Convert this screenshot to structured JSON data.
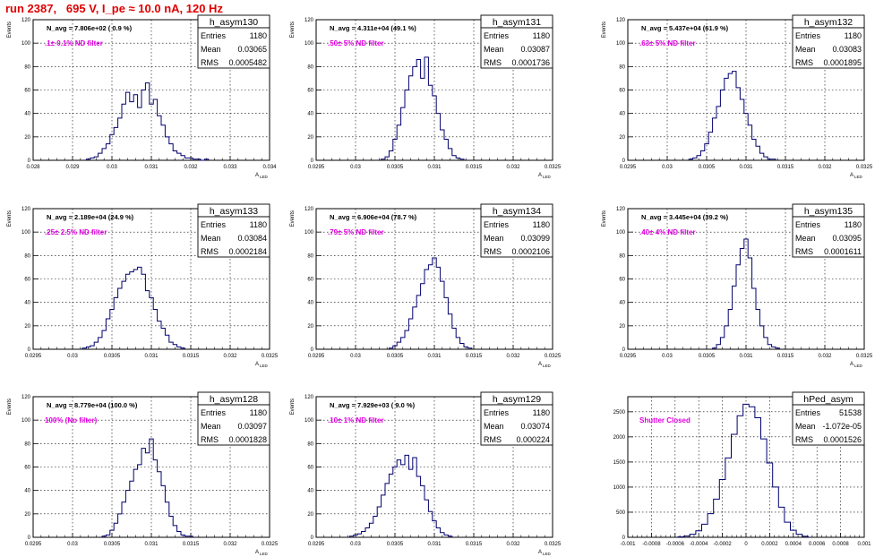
{
  "header": {
    "run_title": "run 2387,   695 V, I_pe ≈ 10.0 nA, 120 Hz"
  },
  "colors": {
    "line": "#00006e",
    "title": "#e00000",
    "annotation": "#e000e0",
    "grid": "#000000"
  },
  "chart_data": [
    {
      "type": "line",
      "title": "h_asym130",
      "nlabel": "N_avg = 7.806e+02 ( 0.9 %)",
      "annotation": ".1± 0.1% ND filter",
      "stats": [
        [
          "Entries",
          "1180"
        ],
        [
          "Mean",
          "0.03065"
        ],
        [
          "RMS",
          "0.0005482"
        ]
      ],
      "xlabel": "A_LED",
      "ylabel": "Events",
      "xlim": [
        0.028,
        0.034
      ],
      "ylim": [
        0,
        120
      ],
      "xticks": [
        0.028,
        0.029,
        0.03,
        0.031,
        0.032,
        0.033,
        0.034
      ],
      "xticklabels": [
        "0.028",
        "0.029",
        "0.03",
        "0.031",
        "0.032",
        "0.033",
        "0.034"
      ],
      "yticks": [
        0,
        20,
        40,
        60,
        80,
        100,
        120
      ],
      "x": [
        0.0294,
        0.0295,
        0.0296,
        0.0297,
        0.0298,
        0.0299,
        0.03,
        0.0301,
        0.0302,
        0.0303,
        0.0304,
        0.0305,
        0.0306,
        0.0307,
        0.0308,
        0.0309,
        0.031,
        0.0311,
        0.0312,
        0.0313,
        0.0314,
        0.0315,
        0.0316,
        0.0317,
        0.0318,
        0.0319,
        0.032,
        0.0321,
        0.0322,
        0.0323,
        0.0324
      ],
      "values": [
        1,
        2,
        3,
        6,
        10,
        14,
        22,
        28,
        36,
        48,
        58,
        50,
        56,
        45,
        60,
        66,
        48,
        52,
        38,
        30,
        20,
        14,
        8,
        6,
        4,
        2,
        2,
        1,
        1,
        0,
        1
      ]
    },
    {
      "type": "line",
      "title": "h_asym131",
      "nlabel": "N_avg = 4.311e+04 (49.1 %)",
      "annotation": ".50± 5% ND filter",
      "stats": [
        [
          "Entries",
          "1180"
        ],
        [
          "Mean",
          "0.03087"
        ],
        [
          "RMS",
          "0.0001736"
        ]
      ],
      "xlabel": "A_LED",
      "ylabel": "Events",
      "xlim": [
        0.0295,
        0.0325
      ],
      "ylim": [
        0,
        120
      ],
      "xticks": [
        0.0295,
        0.03,
        0.0305,
        0.031,
        0.0315,
        0.032,
        0.0325
      ],
      "xticklabels": [
        "0.0295",
        "0.03",
        "0.0305",
        "0.031",
        "0.0315",
        "0.032",
        "0.0325"
      ],
      "yticks": [
        0,
        20,
        40,
        60,
        80,
        100,
        120
      ],
      "x": [
        0.03035,
        0.0304,
        0.03045,
        0.0305,
        0.03055,
        0.0306,
        0.03065,
        0.0307,
        0.03075,
        0.0308,
        0.03085,
        0.0309,
        0.03095,
        0.031,
        0.03105,
        0.0311,
        0.03115,
        0.0312,
        0.03125,
        0.0313,
        0.03135
      ],
      "values": [
        1,
        3,
        8,
        18,
        30,
        45,
        60,
        72,
        80,
        86,
        70,
        88,
        64,
        55,
        40,
        26,
        18,
        10,
        4,
        2,
        1
      ]
    },
    {
      "type": "line",
      "title": "h_asym132",
      "nlabel": "N_avg = 5.437e+04 (61.9 %)",
      "annotation": ".63± 5% ND filter",
      "stats": [
        [
          "Entries",
          "1180"
        ],
        [
          "Mean",
          "0.03083"
        ],
        [
          "RMS",
          "0.0001895"
        ]
      ],
      "xlabel": "A_LED",
      "ylabel": "Events",
      "xlim": [
        0.0295,
        0.0325
      ],
      "ylim": [
        0,
        120
      ],
      "xticks": [
        0.0295,
        0.03,
        0.0305,
        0.031,
        0.0315,
        0.032,
        0.0325
      ],
      "xticklabels": [
        "0.0295",
        "0.03",
        "0.0305",
        "0.031",
        "0.0315",
        "0.032",
        "0.0325"
      ],
      "yticks": [
        0,
        20,
        40,
        60,
        80,
        100,
        120
      ],
      "x": [
        0.0303,
        0.03035,
        0.0304,
        0.03045,
        0.0305,
        0.03055,
        0.0306,
        0.03065,
        0.0307,
        0.03075,
        0.0308,
        0.03085,
        0.0309,
        0.03095,
        0.031,
        0.03105,
        0.0311,
        0.03115,
        0.0312,
        0.03125,
        0.0313,
        0.03135
      ],
      "values": [
        1,
        2,
        4,
        8,
        14,
        24,
        36,
        46,
        60,
        70,
        74,
        76,
        62,
        52,
        40,
        30,
        18,
        12,
        6,
        3,
        1,
        1
      ]
    },
    {
      "type": "line",
      "title": "h_asym133",
      "nlabel": "N_avg = 2.189e+04 (24.9 %)",
      "annotation": ".25± 2.5% ND filter",
      "stats": [
        [
          "Entries",
          "1180"
        ],
        [
          "Mean",
          "0.03084"
        ],
        [
          "RMS",
          "0.0002184"
        ]
      ],
      "xlabel": "A_LED",
      "ylabel": "Events",
      "xlim": [
        0.0295,
        0.0325
      ],
      "ylim": [
        0,
        120
      ],
      "xticks": [
        0.0295,
        0.03,
        0.0305,
        0.031,
        0.0315,
        0.032,
        0.0325
      ],
      "xticklabels": [
        "0.0295",
        "0.03",
        "0.0305",
        "0.031",
        "0.0315",
        "0.032",
        "0.0325"
      ],
      "yticks": [
        0,
        20,
        40,
        60,
        80,
        100,
        120
      ],
      "x": [
        0.03015,
        0.0302,
        0.03025,
        0.0303,
        0.03035,
        0.0304,
        0.03045,
        0.0305,
        0.03055,
        0.0306,
        0.03065,
        0.0307,
        0.03075,
        0.0308,
        0.03085,
        0.0309,
        0.03095,
        0.031,
        0.03105,
        0.0311,
        0.03115,
        0.0312,
        0.03125,
        0.0313,
        0.03135,
        0.0314
      ],
      "values": [
        1,
        2,
        3,
        6,
        10,
        16,
        26,
        34,
        44,
        52,
        58,
        64,
        66,
        68,
        70,
        64,
        50,
        44,
        34,
        24,
        18,
        12,
        6,
        4,
        2,
        1
      ]
    },
    {
      "type": "line",
      "title": "h_asym134",
      "nlabel": "N_avg = 6.906e+04 (78.7 %)",
      "annotation": ".79± 5% ND filter",
      "stats": [
        [
          "Entries",
          "1180"
        ],
        [
          "Mean",
          "0.03099"
        ],
        [
          "RMS",
          "0.0002106"
        ]
      ],
      "xlabel": "A_LED",
      "ylabel": "Events",
      "xlim": [
        0.0295,
        0.0325
      ],
      "ylim": [
        0,
        120
      ],
      "xticks": [
        0.0295,
        0.03,
        0.0305,
        0.031,
        0.0315,
        0.032,
        0.0325
      ],
      "xticklabels": [
        "0.0295",
        "0.03",
        "0.0305",
        "0.031",
        "0.0315",
        "0.032",
        "0.0325"
      ],
      "yticks": [
        0,
        20,
        40,
        60,
        80,
        100,
        120
      ],
      "x": [
        0.03045,
        0.0305,
        0.03055,
        0.0306,
        0.03065,
        0.0307,
        0.03075,
        0.0308,
        0.03085,
        0.0309,
        0.03095,
        0.031,
        0.03105,
        0.0311,
        0.03115,
        0.0312,
        0.03125,
        0.0313,
        0.03135,
        0.0314,
        0.03145
      ],
      "values": [
        1,
        3,
        6,
        10,
        16,
        26,
        36,
        46,
        56,
        68,
        72,
        78,
        70,
        58,
        44,
        30,
        18,
        10,
        5,
        2,
        1
      ]
    },
    {
      "type": "line",
      "title": "h_asym135",
      "nlabel": "N_avg = 3.445e+04 (39.2 %)",
      "annotation": ".40± 4% ND filter",
      "stats": [
        [
          "Entries",
          "1180"
        ],
        [
          "Mean",
          "0.03095"
        ],
        [
          "RMS",
          "0.0001611"
        ]
      ],
      "xlabel": "A_LED",
      "ylabel": "Events",
      "xlim": [
        0.0295,
        0.0325
      ],
      "ylim": [
        0,
        120
      ],
      "xticks": [
        0.0295,
        0.03,
        0.0305,
        0.031,
        0.0315,
        0.032,
        0.0325
      ],
      "xticklabels": [
        "0.0295",
        "0.03",
        "0.0305",
        "0.031",
        "0.0315",
        "0.032",
        "0.0325"
      ],
      "yticks": [
        0,
        20,
        40,
        60,
        80,
        100,
        120
      ],
      "x": [
        0.0306,
        0.03065,
        0.0307,
        0.03075,
        0.0308,
        0.03085,
        0.0309,
        0.03095,
        0.031,
        0.03105,
        0.0311,
        0.03115,
        0.0312,
        0.03125,
        0.0313,
        0.03135,
        0.0314
      ],
      "values": [
        1,
        4,
        10,
        20,
        34,
        54,
        72,
        86,
        94,
        78,
        52,
        34,
        20,
        10,
        4,
        2,
        1
      ]
    },
    {
      "type": "line",
      "title": "h_asym128",
      "nlabel": "N_avg = 8.779e+04 (100.0 %)",
      "annotation": "100% (No filter)",
      "stats": [
        [
          "Entries",
          "1180"
        ],
        [
          "Mean",
          "0.03097"
        ],
        [
          "RMS",
          "0.0001828"
        ]
      ],
      "xlabel": "A_LED",
      "ylabel": "Events",
      "xlim": [
        0.0295,
        0.0325
      ],
      "ylim": [
        0,
        120
      ],
      "xticks": [
        0.0295,
        0.03,
        0.0305,
        0.031,
        0.0315,
        0.032,
        0.0325
      ],
      "xticklabels": [
        "0.0295",
        "0.03",
        "0.0305",
        "0.031",
        "0.0315",
        "0.032",
        "0.0325"
      ],
      "yticks": [
        0,
        20,
        40,
        60,
        80,
        100,
        120
      ],
      "x": [
        0.0304,
        0.03045,
        0.0305,
        0.03055,
        0.0306,
        0.03065,
        0.0307,
        0.03075,
        0.0308,
        0.03085,
        0.0309,
        0.03095,
        0.031,
        0.03105,
        0.0311,
        0.03115,
        0.0312,
        0.03125,
        0.0313,
        0.03135,
        0.0314,
        0.03145,
        0.0315
      ],
      "values": [
        1,
        2,
        6,
        12,
        20,
        30,
        40,
        48,
        58,
        62,
        76,
        72,
        84,
        66,
        56,
        44,
        30,
        18,
        10,
        5,
        2,
        1,
        1
      ]
    },
    {
      "type": "line",
      "title": "h_asym129",
      "nlabel": "N_avg = 7.929e+03 ( 9.0 %)",
      "annotation": ".10± 1% ND filter",
      "stats": [
        [
          "Entries",
          "1180"
        ],
        [
          "Mean",
          "0.03074"
        ],
        [
          "RMS",
          "0.000224"
        ]
      ],
      "xlabel": "A_LED",
      "ylabel": "Events",
      "xlim": [
        0.0295,
        0.0325
      ],
      "ylim": [
        0,
        120
      ],
      "xticks": [
        0.0295,
        0.03,
        0.0305,
        0.031,
        0.0315,
        0.032,
        0.0325
      ],
      "xticklabels": [
        "0.0295",
        "0.03",
        "0.0305",
        "0.031",
        "0.0315",
        "0.032",
        "0.0325"
      ],
      "yticks": [
        0,
        20,
        40,
        60,
        80,
        100,
        120
      ],
      "x": [
        0.02995,
        0.03,
        0.03005,
        0.0301,
        0.03015,
        0.0302,
        0.03025,
        0.0303,
        0.03035,
        0.0304,
        0.03045,
        0.0305,
        0.03055,
        0.0306,
        0.03065,
        0.0307,
        0.03075,
        0.0308,
        0.03085,
        0.0309,
        0.03095,
        0.031,
        0.03105,
        0.0311,
        0.03115,
        0.0312
      ],
      "values": [
        1,
        2,
        3,
        5,
        8,
        12,
        18,
        26,
        36,
        46,
        54,
        60,
        66,
        62,
        70,
        58,
        68,
        52,
        44,
        32,
        22,
        14,
        8,
        4,
        2,
        1
      ]
    },
    {
      "type": "line",
      "title": "hPed_asym",
      "nlabel": "",
      "annotation": "Shutter Closed",
      "stats": [
        [
          "Entries",
          "51538"
        ],
        [
          "Mean",
          "-1.072e-05"
        ],
        [
          "RMS",
          "0.0001526"
        ]
      ],
      "xlabel": "",
      "ylabel": "",
      "xlim": [
        -0.001,
        0.001
      ],
      "ylim": [
        0,
        2800
      ],
      "xticks": [
        -0.001,
        -0.0008,
        -0.0006,
        -0.0004,
        -0.0002,
        0,
        0.0002,
        0.0004,
        0.0006,
        0.0008,
        0.001
      ],
      "xticklabels": [
        "-0.001",
        "-0.0008",
        "-0.0006",
        "-0.0004",
        "-0.0002",
        "0",
        "0.0002",
        "0.0004",
        "0.0006",
        "0.0008",
        "0.001"
      ],
      "yticks": [
        0,
        500,
        1000,
        1500,
        2000,
        2500
      ],
      "x": [
        -0.00055,
        -0.0005,
        -0.00045,
        -0.0004,
        -0.00035,
        -0.0003,
        -0.00025,
        -0.0002,
        -0.00015,
        -0.0001,
        -5e-05,
        0,
        5e-05,
        0.0001,
        0.00015,
        0.0002,
        0.00025,
        0.0003,
        0.00035,
        0.0004,
        0.00045,
        0.0005
      ],
      "values": [
        10,
        25,
        60,
        130,
        260,
        470,
        760,
        1150,
        1580,
        2050,
        2420,
        2650,
        2600,
        2380,
        1960,
        1480,
        1000,
        600,
        300,
        140,
        60,
        20
      ]
    }
  ]
}
